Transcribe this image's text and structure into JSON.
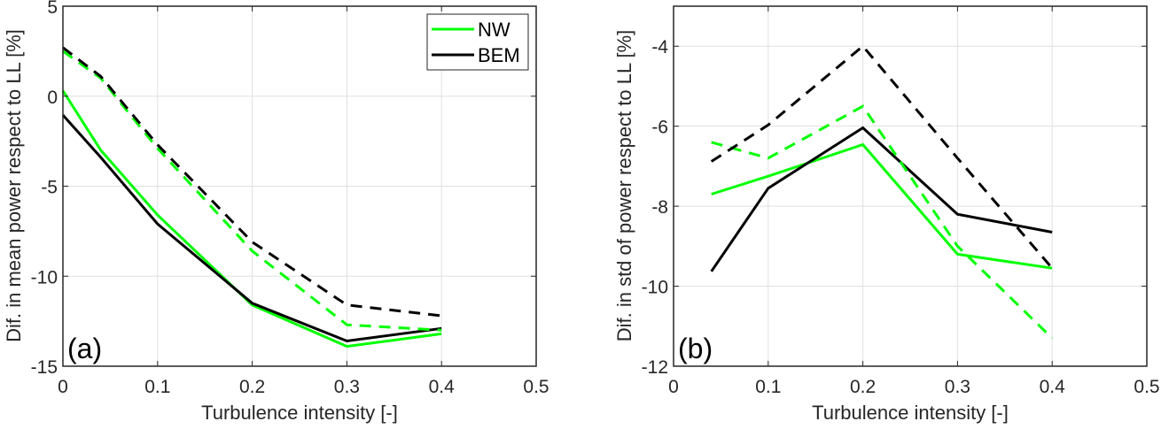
{
  "chart_data": [
    {
      "type": "line",
      "panel_label": "(a)",
      "title": "",
      "xlabel": "Turbulence intensity [-]",
      "ylabel": "Dif. in mean power respect to LL [%]",
      "xlim": [
        0,
        0.5
      ],
      "ylim": [
        -15,
        5
      ],
      "xticks": [
        0,
        0.1,
        0.2,
        0.3,
        0.4,
        0.5
      ],
      "xtick_labels": [
        "0",
        "0.1",
        "0.2",
        "0.3",
        "0.4",
        "0.5"
      ],
      "yticks": [
        -15,
        -10,
        -5,
        0,
        5
      ],
      "ytick_labels": [
        "-15",
        "-10",
        "-5",
        "0",
        "5"
      ],
      "grid": true,
      "legend": {
        "placement": "top-right",
        "entries": [
          {
            "label": "NW",
            "color": "#00ff00"
          },
          {
            "label": "BEM",
            "color": "#000000"
          }
        ]
      },
      "series": [
        {
          "name": "NW (solid)",
          "color": "#00ff00",
          "style": "solid",
          "x": [
            0,
            0.04,
            0.1,
            0.2,
            0.3,
            0.4
          ],
          "y": [
            0.3,
            -3.0,
            -6.6,
            -11.6,
            -13.9,
            -13.2
          ]
        },
        {
          "name": "BEM (solid)",
          "color": "#000000",
          "style": "solid",
          "x": [
            0,
            0.04,
            0.1,
            0.2,
            0.3,
            0.4
          ],
          "y": [
            -1.05,
            -3.4,
            -7.1,
            -11.5,
            -13.6,
            -12.9
          ]
        },
        {
          "name": "NW (dashed)",
          "color": "#00ff00",
          "style": "dashed",
          "x": [
            0,
            0.04,
            0.1,
            0.2,
            0.3,
            0.4
          ],
          "y": [
            2.5,
            1.0,
            -2.9,
            -8.6,
            -12.7,
            -13.0
          ]
        },
        {
          "name": "BEM (dashed)",
          "color": "#000000",
          "style": "dashed",
          "x": [
            0,
            0.04,
            0.1,
            0.2,
            0.3,
            0.4
          ],
          "y": [
            2.7,
            1.1,
            -2.7,
            -8.1,
            -11.6,
            -12.2
          ]
        }
      ]
    },
    {
      "type": "line",
      "panel_label": "(b)",
      "title": "",
      "xlabel": "Turbulence intensity [-]",
      "ylabel": "Dif. in std of power respect to LL [%]",
      "xlim": [
        0,
        0.5
      ],
      "ylim": [
        -12,
        -3
      ],
      "xticks": [
        0,
        0.1,
        0.2,
        0.3,
        0.4,
        0.5
      ],
      "xtick_labels": [
        "0",
        "0.1",
        "0.2",
        "0.3",
        "0.4",
        "0.5"
      ],
      "yticks": [
        -12,
        -10,
        -8,
        -6,
        -4
      ],
      "ytick_labels": [
        "-12",
        "-10",
        "-8",
        "-6",
        "-4"
      ],
      "grid": true,
      "series": [
        {
          "name": "NW (solid)",
          "color": "#00ff00",
          "style": "solid",
          "x": [
            0.04,
            0.1,
            0.2,
            0.3,
            0.4
          ],
          "y": [
            -7.7,
            -7.25,
            -6.46,
            -9.2,
            -9.55
          ]
        },
        {
          "name": "BEM (solid)",
          "color": "#000000",
          "style": "solid",
          "x": [
            0.04,
            0.1,
            0.2,
            0.3,
            0.4
          ],
          "y": [
            -9.63,
            -7.55,
            -6.04,
            -8.2,
            -8.65
          ]
        },
        {
          "name": "NW (dashed)",
          "color": "#00ff00",
          "style": "dashed",
          "x": [
            0.04,
            0.1,
            0.2,
            0.3,
            0.4
          ],
          "y": [
            -6.4,
            -6.8,
            -5.5,
            -9.0,
            -11.3
          ]
        },
        {
          "name": "BEM (dashed)",
          "color": "#000000",
          "style": "dashed",
          "x": [
            0.04,
            0.1,
            0.2,
            0.3,
            0.4
          ],
          "y": [
            -6.88,
            -5.97,
            -4.0,
            -6.8,
            -9.55
          ]
        }
      ]
    }
  ]
}
